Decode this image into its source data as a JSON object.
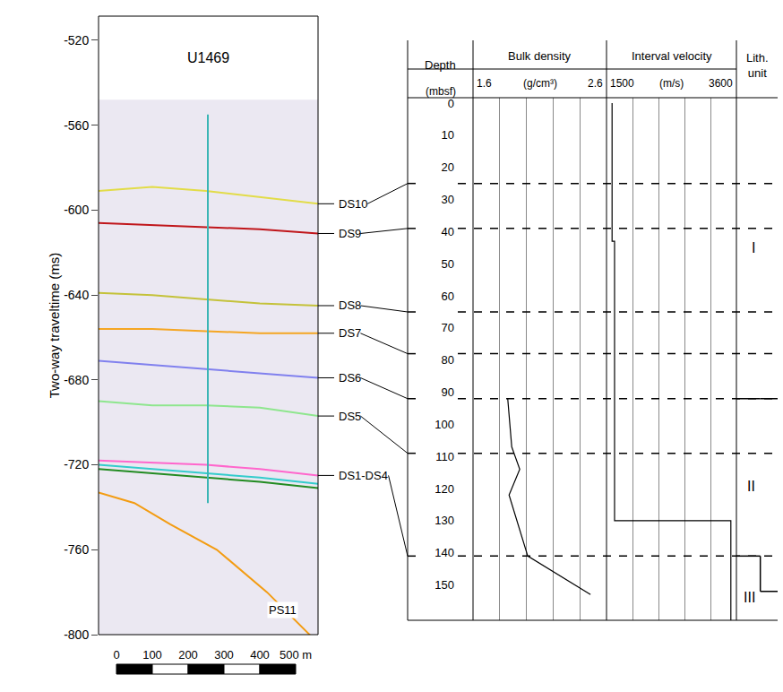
{
  "chart_data": [
    {
      "type": "seismic_section",
      "yaxis_title": "Two-way traveltime (ms)",
      "xlim": [
        -50,
        562.5
      ],
      "xticks": [
        0,
        100,
        200,
        300,
        400,
        {
          "value": 500,
          "label": "500 m"
        }
      ],
      "ylim": [
        -800,
        -508.6
      ],
      "yticks": [
        -520,
        -560,
        -600,
        -640,
        -680,
        -720,
        -760,
        -800
      ],
      "section_top": -548,
      "well": {
        "name": "U1469",
        "x": 255,
        "top": -555,
        "bottom": -738,
        "color": "#3ab5b5"
      },
      "horizons": [
        {
          "name": "DS10",
          "depth": 25,
          "lines": [
            {
              "color": "#e2dc48",
              "x": [
                -50,
                100,
                250,
                400,
                562.5
              ],
              "y": [
                -591,
                -589,
                -591,
                -594,
                -597
              ]
            }
          ]
        },
        {
          "name": "DS9",
          "depth": 39,
          "lines": [
            {
              "color": "#c0161b",
              "x": [
                -50,
                100,
                250,
                400,
                562.5
              ],
              "y": [
                -606,
                -607,
                -608,
                -609,
                -611
              ]
            }
          ]
        },
        {
          "name": "DS8",
          "depth": 65,
          "lines": [
            {
              "color": "#c4c23a",
              "x": [
                -50,
                100,
                250,
                400,
                562.5
              ],
              "y": [
                -639,
                -640,
                -642,
                -644,
                -645
              ]
            }
          ]
        },
        {
          "name": "DS7",
          "depth": 78,
          "lines": [
            {
              "color": "#f5a623",
              "x": [
                -50,
                100,
                250,
                400,
                562.5
              ],
              "y": [
                -656,
                -656,
                -657,
                -658,
                -658
              ]
            }
          ]
        },
        {
          "name": "DS6",
          "depth": 92,
          "lines": [
            {
              "color": "#8080ee",
              "x": [
                -50,
                100,
                250,
                400,
                562.5
              ],
              "y": [
                -671,
                -673,
                -675,
                -677,
                -679
              ]
            }
          ]
        },
        {
          "name": "DS5",
          "depth": 109,
          "lines": [
            {
              "color": "#8ee68e",
              "x": [
                -50,
                100,
                250,
                400,
                562.5
              ],
              "y": [
                -690,
                -692,
                -692,
                -693,
                -697
              ]
            }
          ]
        },
        {
          "name": "DS1-DS4",
          "depth": 141,
          "lines": [
            {
              "color": "#ff66cc",
              "x": [
                -50,
                100,
                250,
                400,
                562.5
              ],
              "y": [
                -718,
                -719,
                -720,
                -722,
                -725
              ]
            },
            {
              "color": "#33cccc",
              "x": [
                -50,
                100,
                250,
                400,
                562.5
              ],
              "y": [
                -720,
                -722,
                -724,
                -726,
                -729
              ]
            },
            {
              "color": "#228b22",
              "x": [
                -50,
                100,
                250,
                400,
                562.5
              ],
              "y": [
                -722,
                -724,
                -726,
                -728,
                -731
              ]
            }
          ]
        },
        {
          "name": "PS11",
          "lines": [
            {
              "color": "#f39c12",
              "x": [
                -50,
                50,
                150,
                280,
                420,
                562.5
              ],
              "y": [
                -733,
                -738,
                -748,
                -760,
                -780,
                -804
              ]
            }
          ]
        }
      ]
    },
    {
      "type": "well_log",
      "ylim": [
        161,
        -1.7
      ],
      "yticks": [
        0,
        10,
        20,
        30,
        40,
        50,
        60,
        70,
        80,
        90,
        100,
        110,
        120,
        130,
        140,
        150
      ],
      "depth_column": {
        "title": "Depth",
        "unit": "(mbsf)"
      },
      "tracks": [
        {
          "title": "Bulk density",
          "unit": "(g/cm³)",
          "xlim": [
            1.6,
            2.6
          ],
          "xticks": [
            1.6,
            2.6
          ],
          "gridlines": [
            1.8,
            2.0,
            2.2,
            2.4
          ],
          "color": "#000000",
          "depth": [
            92,
            107,
            114,
            122,
            141,
            153
          ],
          "values": [
            1.86,
            1.89,
            1.95,
            1.87,
            2.01,
            2.48
          ]
        },
        {
          "title": "Interval velocity",
          "unit": "(m/s)",
          "xlim": [
            1500,
            3600
          ],
          "xticks": [
            1500,
            3600
          ],
          "gridlines": [
            1920,
            2340,
            2760,
            3180
          ],
          "color": "#000000",
          "depth": [
            0,
            43,
            43,
            130,
            130,
            161
          ],
          "values": [
            1590,
            1590,
            1630,
            1630,
            3510,
            3510
          ]
        }
      ],
      "lithology": {
        "title": "Lith. unit",
        "units": [
          "I",
          "II",
          "III"
        ],
        "boundaries": [
          [
            92,
            92
          ],
          [
            141,
            152
          ]
        ]
      }
    }
  ]
}
